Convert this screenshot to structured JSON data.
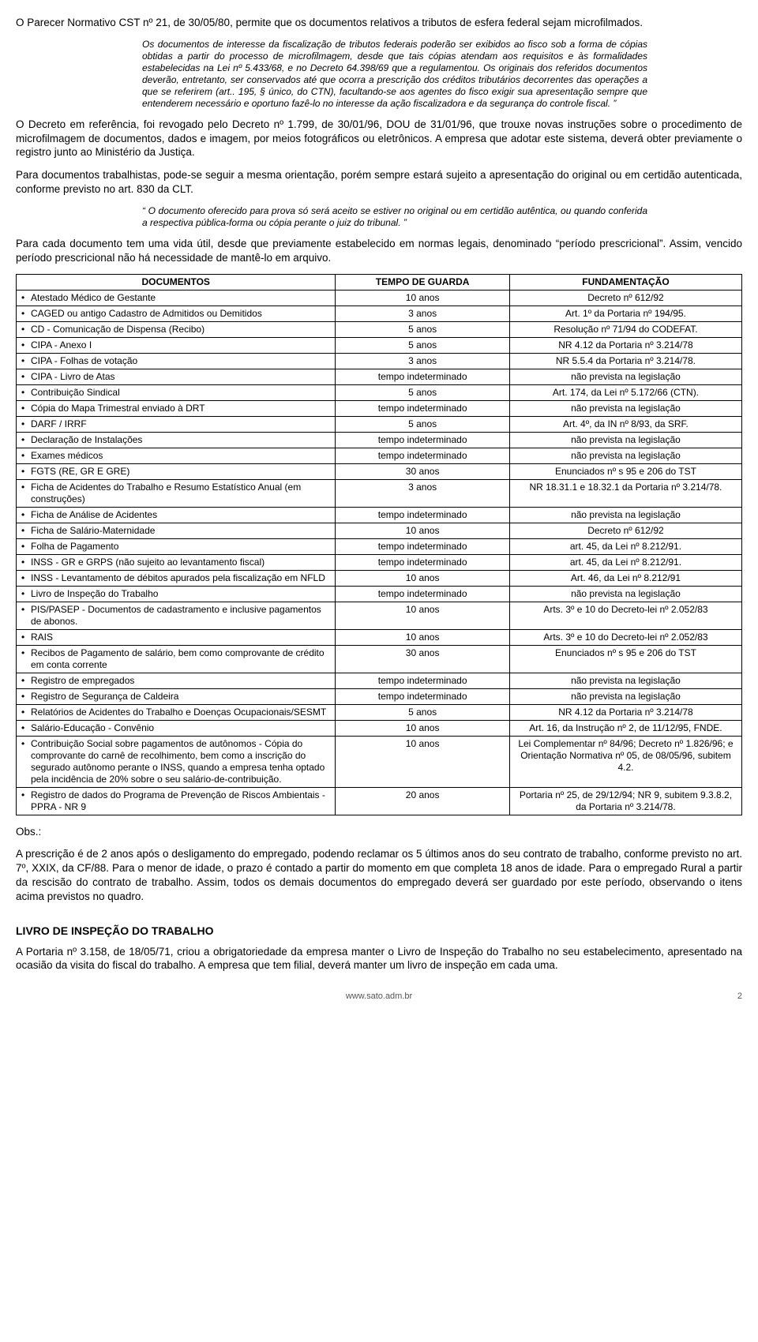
{
  "p1": "O Parecer Normativo CST nº 21, de 30/05/80, permite que os documentos relativos a tributos de esfera federal sejam microfilmados.",
  "quote1": "Os documentos de interesse da fiscalização de tributos federais poderão ser exibidos ao fisco sob a forma de cópias obtidas a partir do processo de microfilmagem, desde que tais cópias atendam aos requisitos e às formalidades estabelecidas na Lei nº 5.433/68, e no Decreto 64.398/69 que a regulamentou. Os originais dos referidos documentos deverão, entretanto, ser conservados até que ocorra a prescrição dos créditos tributários decorrentes das operações a que se referirem (art.. 195, § único, do CTN), facultando-se aos agentes do fisco exigir sua apresentação sempre que entenderem necessário e oportuno fazê-lo no interesse da ação fiscalizadora e da segurança do controle fiscal. ”",
  "p2": "O Decreto em referência, foi revogado pelo Decreto nº 1.799, de 30/01/96, DOU de 31/01/96, que trouxe novas instruções sobre o procedimento de microfilmagem de documentos, dados e imagem, por meios fotográficos ou eletrônicos. A empresa que adotar este sistema, deverá obter previamente o registro junto ao Ministério da Justiça.",
  "p3": "Para documentos trabalhistas, pode-se seguir a mesma orientação, porém sempre estará sujeito a apresentação do original ou em certidão autenticada, conforme previsto no art. 830 da CLT.",
  "quote2": "“ O documento oferecido para prova só será aceito se estiver no original ou em certidão autêntica, ou quando conferida a respectiva pública-forma ou cópia perante o juiz do tribunal. ”",
  "p4": "Para cada documento tem uma vida útil, desde que previamente estabelecido em normas legais, denominado “período prescricional”. Assim, vencido período prescricional não há necessidade de mantê-lo em arquivo.",
  "table": {
    "headers": [
      "DOCUMENTOS",
      "TEMPO DE GUARDA",
      "FUNDAMENTAÇÃO"
    ],
    "rows": [
      [
        "Atestado Médico de Gestante",
        "10 anos",
        "Decreto nº 612/92"
      ],
      [
        "CAGED ou antigo Cadastro de Admitidos ou Demitidos",
        "3 anos",
        "Art. 1º da Portaria nº 194/95."
      ],
      [
        "CD - Comunicação de Dispensa (Recibo)",
        "5 anos",
        "Resolução nº 71/94 do CODEFAT."
      ],
      [
        "CIPA - Anexo I",
        "5 anos",
        "NR 4.12 da Portaria nº 3.214/78"
      ],
      [
        "CIPA - Folhas de votação",
        "3 anos",
        "NR 5.5.4 da Portaria nº 3.214/78."
      ],
      [
        "CIPA - Livro de Atas",
        "tempo indeterminado",
        "não prevista na legislação"
      ],
      [
        "Contribuição Sindical",
        "5 anos",
        "Art. 174, da Lei nº 5.172/66 (CTN)."
      ],
      [
        "Cópia do Mapa Trimestral enviado à DRT",
        "tempo indeterminado",
        "não prevista na legislação"
      ],
      [
        "DARF / IRRF",
        "5 anos",
        "Art. 4º, da IN nº 8/93, da SRF."
      ],
      [
        "Declaração de Instalações",
        "tempo indeterminado",
        "não prevista na legislação"
      ],
      [
        "Exames médicos",
        "tempo indeterminado",
        "não prevista na legislação"
      ],
      [
        "FGTS (RE, GR E GRE)",
        "30 anos",
        "Enunciados nº s 95 e 206 do TST"
      ],
      [
        "Ficha de Acidentes do Trabalho e Resumo Estatístico Anual (em construções)",
        "3 anos",
        "NR 18.31.1 e 18.32.1 da Portaria nº 3.214/78."
      ],
      [
        "Ficha de Análise de Acidentes",
        "tempo indeterminado",
        "não prevista na legislação"
      ],
      [
        "Ficha de Salário-Maternidade",
        "10 anos",
        "Decreto nº 612/92"
      ],
      [
        "Folha de Pagamento",
        "tempo indeterminado",
        "art. 45, da Lei nº 8.212/91."
      ],
      [
        "INSS - GR e GRPS (não sujeito ao levantamento fiscal)",
        "tempo indeterminado",
        "art. 45, da Lei nº 8.212/91."
      ],
      [
        "INSS - Levantamento de débitos apurados pela fiscalização em NFLD",
        "10 anos",
        "Art. 46, da Lei nº 8.212/91"
      ],
      [
        "Livro de Inspeção do Trabalho",
        "tempo indeterminado",
        "não prevista na legislação"
      ],
      [
        "PIS/PASEP - Documentos de cadastramento e inclusive pagamentos de abonos.",
        "10 anos",
        "Arts. 3º e 10 do Decreto-lei nº 2.052/83"
      ],
      [
        "RAIS",
        "10 anos",
        "Arts. 3º e 10 do Decreto-lei nº 2.052/83"
      ],
      [
        "Recibos de Pagamento de salário, bem como comprovante de crédito em conta corrente",
        "30 anos",
        "Enunciados nº s 95 e 206 do TST"
      ],
      [
        "Registro de empregados",
        "tempo indeterminado",
        "não prevista na legislação"
      ],
      [
        "Registro de Segurança de Caldeira",
        "tempo indeterminado",
        "não prevista na legislação"
      ],
      [
        "Relatórios de Acidentes do Trabalho e Doenças Ocupacionais/SESMT",
        "5 anos",
        "NR 4.12 da Portaria nº 3.214/78"
      ],
      [
        "Salário-Educação - Convênio",
        "10 anos",
        "Art. 16, da Instrução nº 2, de 11/12/95, FNDE."
      ],
      [
        "Contribuição Social sobre pagamentos de autônomos - Cópia do comprovante do carnê de recolhimento, bem como a inscrição do segurado autônomo perante o INSS, quando a empresa tenha optado pela incidência de 20% sobre o seu salário-de-contribuição.",
        "10 anos",
        "Lei Complementar nº 84/96; Decreto nº 1.826/96; e Orientação Normativa nº 05, de 08/05/96, subitem 4.2."
      ],
      [
        "Registro de dados do Programa de Prevenção de Riscos Ambientais - PPRA - NR 9",
        "20 anos",
        "Portaria nº 25, de 29/12/94; NR 9, subitem 9.3.8.2, da Portaria nº 3.214/78."
      ]
    ]
  },
  "obs_label": "Obs.:",
  "obs_body": "A prescrição é de 2 anos após o desligamento do empregado, podendo reclamar os 5 últimos anos do seu contrato de trabalho, conforme previsto no art. 7º, XXIX, da CF/88. Para o menor de idade, o prazo é contado a partir do momento em que completa 18 anos de idade. Para o empregado Rural a partir da rescisão do contrato de trabalho. Assim, todos os demais documentos do empregado deverá ser guardado por este período, observando o itens acima previstos no quadro.",
  "section_title": "LIVRO DE INSPEÇÃO DO TRABALHO",
  "p_last": "A Portaria nº 3.158, de 18/05/71, criou a obrigatoriedade da empresa manter o Livro de Inspeção do Trabalho no seu estabelecimento, apresentado na ocasião da visita do fiscal do trabalho. A empresa que tem filial, deverá manter um livro de inspeção em cada uma.",
  "footer_site": "www.sato.adm.br",
  "footer_page": "2"
}
